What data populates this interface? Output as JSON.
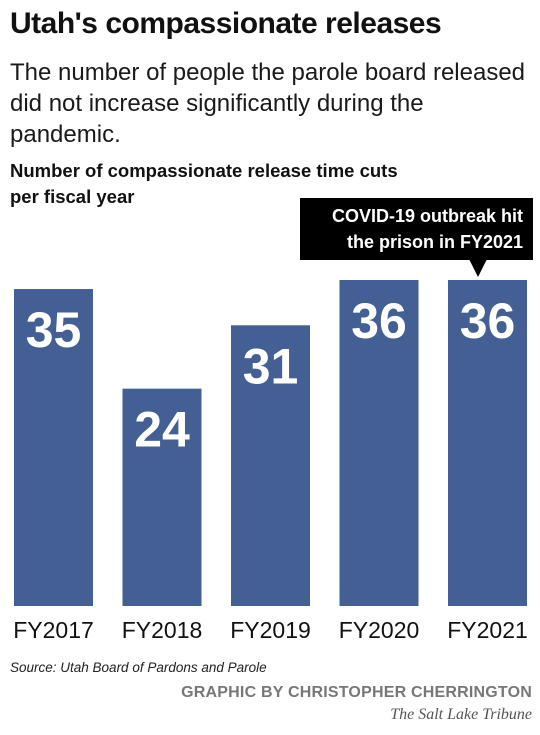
{
  "header": {
    "title": "Utah's compassionate releases",
    "subtitle": "The number of people the parole board released did not increase significantly during the pandemic."
  },
  "annotation": {
    "text": "COVID-19 outbreak hit the prison in FY2021"
  },
  "chart_data": {
    "type": "bar",
    "title": "Number of compassionate release time cuts per fiscal year",
    "categories": [
      "FY2017",
      "FY2018",
      "FY2019",
      "FY2020",
      "FY2021"
    ],
    "values": [
      35,
      24,
      31,
      36,
      36
    ],
    "ylim": [
      0,
      36
    ],
    "grid": false,
    "bar_color": "#445f93",
    "label_color": "#ffffff"
  },
  "footer": {
    "source": "Source: Utah Board of Pardons and Parole",
    "credit": "GRAPHIC BY CHRISTOPHER CHERRINGTON",
    "publisher": "The Salt Lake Tribune"
  }
}
